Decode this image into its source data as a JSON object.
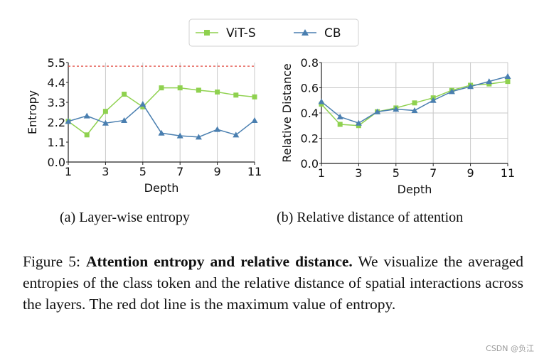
{
  "legend": {
    "series_a": "ViT-S",
    "series_b": "CB"
  },
  "chart_data": [
    {
      "type": "line",
      "title": "",
      "xlabel": "Depth",
      "ylabel": "Entropy",
      "xlim": [
        1,
        11
      ],
      "ylim": [
        0.0,
        5.5
      ],
      "xticks": [
        1,
        3,
        5,
        7,
        9,
        11
      ],
      "yticks": [
        "0.0",
        "1.1",
        "2.2",
        "3.3",
        "4.4",
        "5.5"
      ],
      "grid": "vertical",
      "x": [
        1,
        2,
        3,
        4,
        5,
        6,
        7,
        8,
        9,
        10,
        11
      ],
      "series": [
        {
          "name": "ViT-S",
          "color": "#8fd14f",
          "marker": "square",
          "values": [
            2.25,
            1.5,
            2.8,
            3.75,
            3.05,
            4.1,
            4.1,
            3.97,
            3.87,
            3.7,
            3.6
          ]
        },
        {
          "name": "CB",
          "color": "#4a7fb0",
          "marker": "triangle",
          "values": [
            2.25,
            2.55,
            2.15,
            2.3,
            3.2,
            1.6,
            1.45,
            1.38,
            1.8,
            1.5,
            2.3
          ]
        }
      ],
      "reference_line": {
        "y": 5.3,
        "color": "#e0463c",
        "style": "dotted"
      },
      "subcaption": "(a) Layer-wise entropy"
    },
    {
      "type": "line",
      "title": "",
      "xlabel": "Depth",
      "ylabel": "Relative Distance",
      "xlim": [
        1,
        11
      ],
      "ylim": [
        0.0,
        0.8
      ],
      "xticks": [
        1,
        3,
        5,
        7,
        9,
        11
      ],
      "yticks": [
        "0.0",
        "0.2",
        "0.4",
        "0.6",
        "0.8"
      ],
      "grid": "both",
      "x": [
        1,
        2,
        3,
        4,
        5,
        6,
        7,
        8,
        9,
        10,
        11
      ],
      "series": [
        {
          "name": "ViT-S",
          "color": "#8fd14f",
          "marker": "square",
          "values": [
            0.47,
            0.31,
            0.3,
            0.41,
            0.44,
            0.48,
            0.52,
            0.58,
            0.62,
            0.63,
            0.65
          ]
        },
        {
          "name": "CB",
          "color": "#4a7fb0",
          "marker": "triangle",
          "values": [
            0.49,
            0.37,
            0.32,
            0.41,
            0.43,
            0.42,
            0.5,
            0.57,
            0.61,
            0.65,
            0.69
          ]
        }
      ],
      "subcaption": "(b) Relative distance of attention"
    }
  ],
  "caption": {
    "label": "Figure 5: ",
    "bold": "Attention entropy and relative distance.",
    "text": " We visualize the averaged entropies of the class token and the relative distance of spatial interactions across the layers.  The red dot line is the maximum value of entropy."
  },
  "watermark": "CSDN @负江"
}
